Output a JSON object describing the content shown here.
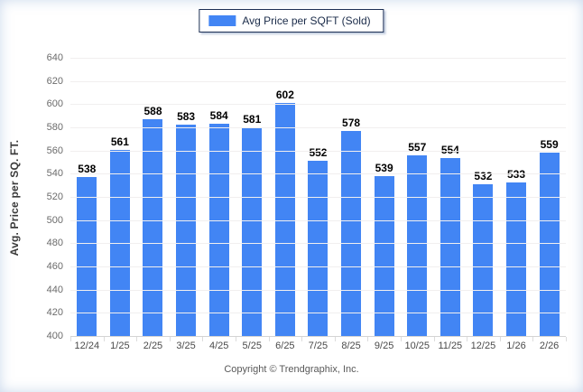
{
  "legend": {
    "label": "Avg Price per SQFT (Sold)"
  },
  "chart_data": {
    "type": "bar",
    "title": "",
    "categories": [
      "12/24",
      "1/25",
      "2/25",
      "3/25",
      "4/25",
      "5/25",
      "6/25",
      "7/25",
      "8/25",
      "9/25",
      "10/25",
      "11/25",
      "12/25",
      "1/26",
      "2/26"
    ],
    "values": [
      538,
      561,
      588,
      583,
      584,
      581,
      602,
      552,
      578,
      539,
      557,
      554,
      532,
      533,
      559
    ],
    "xlabel": "",
    "ylabel": "Avg. Price per SQ. FT.",
    "ylim": [
      400,
      640
    ],
    "yticks": [
      400,
      420,
      440,
      460,
      480,
      500,
      520,
      540,
      560,
      580,
      600,
      620,
      640
    ],
    "grid": "horizontal",
    "legend_position": "top-center",
    "bar_color": "#4285f4"
  },
  "footer": {
    "copyright": "Copyright © Trendgraphix, Inc."
  },
  "colors": {
    "bar": "#4285f4",
    "legend_border": "#1c2f54",
    "gridline": "#f1efef",
    "axis_line": "#d4d4d4"
  }
}
